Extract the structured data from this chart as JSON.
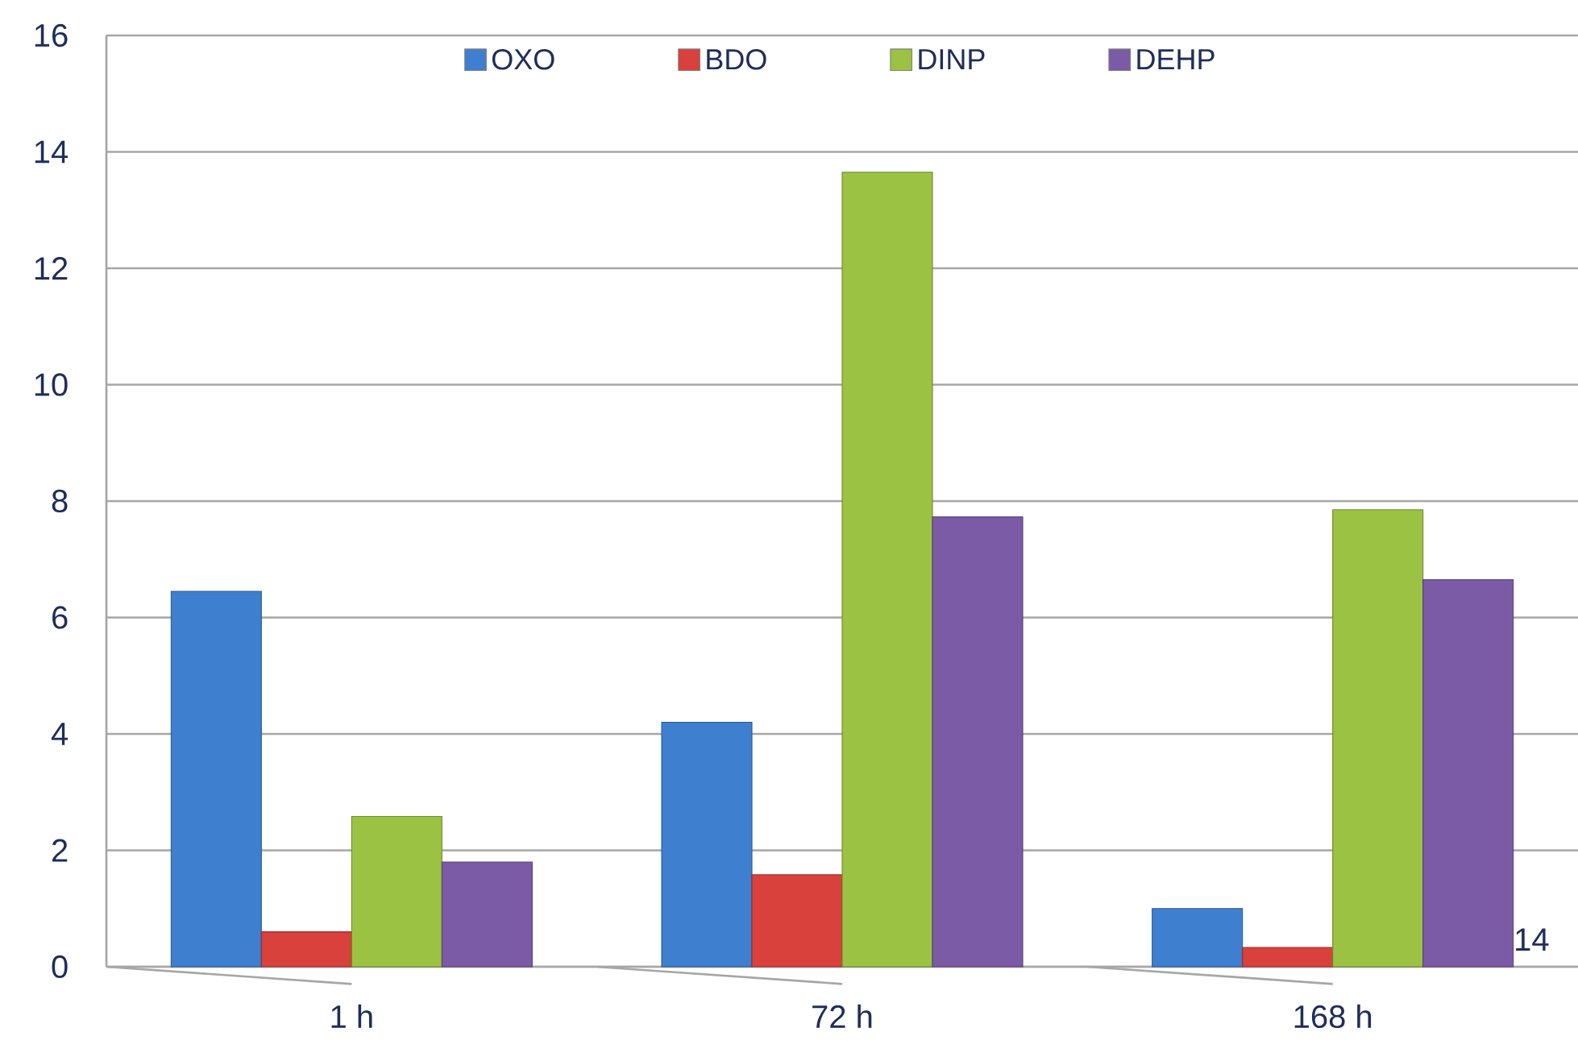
{
  "chart_data": {
    "type": "bar",
    "categories": [
      "1 h",
      "72 h",
      "168 h"
    ],
    "series": [
      {
        "name": "OXO",
        "color": "#3f7fcf",
        "values": [
          6.45,
          4.2,
          1.0
        ]
      },
      {
        "name": "BDO",
        "color": "#d9413c",
        "values": [
          0.6,
          1.58,
          0.33
        ]
      },
      {
        "name": "DINP",
        "color": "#9bc242",
        "values": [
          2.58,
          13.65,
          7.85
        ]
      },
      {
        "name": "DEHP",
        "color": "#7b5aa6",
        "values": [
          1.8,
          7.73,
          6.65
        ]
      }
    ],
    "ylim": [
      0,
      16
    ],
    "yticks": [
      0,
      2,
      4,
      6,
      8,
      10,
      12,
      14,
      16
    ],
    "grid": "y",
    "legend": "top",
    "annotations": [
      "14"
    ]
  }
}
